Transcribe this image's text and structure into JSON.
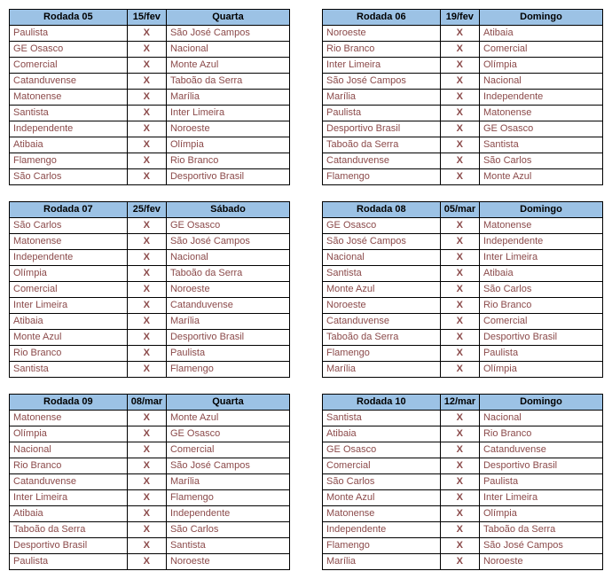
{
  "vs_marker": "X",
  "header_bg": "#9cc2e5",
  "text_color": "#8b4a4a",
  "rounds": [
    {
      "title": "Rodada 05",
      "date": "15/fev",
      "weekday": "Quarta",
      "matches": [
        {
          "home": "Paulista",
          "away": "São José Campos"
        },
        {
          "home": "GE Osasco",
          "away": "Nacional"
        },
        {
          "home": "Comercial",
          "away": "Monte Azul"
        },
        {
          "home": "Catanduvense",
          "away": "Taboão da Serra"
        },
        {
          "home": "Matonense",
          "away": "Marília"
        },
        {
          "home": "Santista",
          "away": "Inter Limeira"
        },
        {
          "home": "Independente",
          "away": "Noroeste"
        },
        {
          "home": "Atibaia",
          "away": "Olímpia"
        },
        {
          "home": "Flamengo",
          "away": "Rio Branco"
        },
        {
          "home": "São Carlos",
          "away": "Desportivo Brasil"
        }
      ]
    },
    {
      "title": "Rodada 06",
      "date": "19/fev",
      "weekday": "Domingo",
      "matches": [
        {
          "home": "Noroeste",
          "away": "Atibaia"
        },
        {
          "home": "Rio Branco",
          "away": "Comercial"
        },
        {
          "home": "Inter Limeira",
          "away": "Olímpia"
        },
        {
          "home": "São José Campos",
          "away": "Nacional"
        },
        {
          "home": "Marília",
          "away": "Independente"
        },
        {
          "home": "Paulista",
          "away": "Matonense"
        },
        {
          "home": "Desportivo Brasil",
          "away": "GE Osasco"
        },
        {
          "home": "Taboão da Serra",
          "away": "Santista"
        },
        {
          "home": "Catanduvense",
          "away": "São Carlos"
        },
        {
          "home": "Flamengo",
          "away": "Monte Azul"
        }
      ]
    },
    {
      "title": "Rodada 07",
      "date": "25/fev",
      "weekday": "Sábado",
      "matches": [
        {
          "home": "São Carlos",
          "away": "GE Osasco"
        },
        {
          "home": "Matonense",
          "away": "São José Campos"
        },
        {
          "home": "Independente",
          "away": "Nacional"
        },
        {
          "home": "Olímpia",
          "away": "Taboão da Serra"
        },
        {
          "home": "Comercial",
          "away": "Noroeste"
        },
        {
          "home": "Inter Limeira",
          "away": "Catanduvense"
        },
        {
          "home": "Atibaia",
          "away": "Marília"
        },
        {
          "home": "Monte Azul",
          "away": "Desportivo Brasil"
        },
        {
          "home": "Rio Branco",
          "away": "Paulista"
        },
        {
          "home": "Santista",
          "away": "Flamengo"
        }
      ]
    },
    {
      "title": "Rodada 08",
      "date": "05/mar",
      "weekday": "Domingo",
      "matches": [
        {
          "home": "GE Osasco",
          "away": "Matonense"
        },
        {
          "home": "São José Campos",
          "away": "Independente"
        },
        {
          "home": "Nacional",
          "away": "Inter Limeira"
        },
        {
          "home": "Santista",
          "away": "Atibaia"
        },
        {
          "home": "Monte Azul",
          "away": "São Carlos"
        },
        {
          "home": "Noroeste",
          "away": "Rio Branco"
        },
        {
          "home": "Catanduvense",
          "away": "Comercial"
        },
        {
          "home": "Taboão da Serra",
          "away": "Desportivo Brasil"
        },
        {
          "home": "Flamengo",
          "away": "Paulista"
        },
        {
          "home": "Marília",
          "away": "Olímpia"
        }
      ]
    },
    {
      "title": "Rodada 09",
      "date": "08/mar",
      "weekday": "Quarta",
      "matches": [
        {
          "home": "Matonense",
          "away": "Monte Azul"
        },
        {
          "home": "Olímpia",
          "away": "GE Osasco"
        },
        {
          "home": "Nacional",
          "away": "Comercial"
        },
        {
          "home": "Rio Branco",
          "away": "São José Campos"
        },
        {
          "home": "Catanduvense",
          "away": "Marília"
        },
        {
          "home": "Inter Limeira",
          "away": "Flamengo"
        },
        {
          "home": "Atibaia",
          "away": "Independente"
        },
        {
          "home": "Taboão da Serra",
          "away": "São Carlos"
        },
        {
          "home": "Desportivo Brasil",
          "away": "Santista"
        },
        {
          "home": "Paulista",
          "away": "Noroeste"
        }
      ]
    },
    {
      "title": "Rodada 10",
      "date": "12/mar",
      "weekday": "Domingo",
      "matches": [
        {
          "home": "Santista",
          "away": "Nacional"
        },
        {
          "home": "Atibaia",
          "away": "Rio Branco"
        },
        {
          "home": "GE Osasco",
          "away": "Catanduvense"
        },
        {
          "home": "Comercial",
          "away": "Desportivo Brasil"
        },
        {
          "home": "São Carlos",
          "away": "Paulista"
        },
        {
          "home": "Monte Azul",
          "away": "Inter Limeira"
        },
        {
          "home": "Matonense",
          "away": "Olímpia"
        },
        {
          "home": "Independente",
          "away": "Taboão da Serra"
        },
        {
          "home": "Flamengo",
          "away": "São José Campos"
        },
        {
          "home": "Marília",
          "away": "Noroeste"
        }
      ]
    }
  ]
}
